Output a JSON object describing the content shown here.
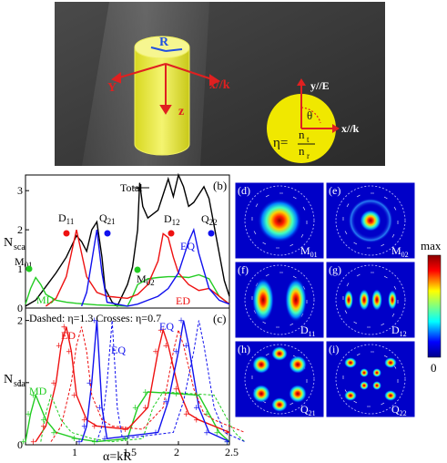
{
  "top_panel": {
    "axis_labels": {
      "R": "R",
      "y": "Y",
      "x": "x//k",
      "z": "z"
    },
    "inset": {
      "y_label": "y//E",
      "theta": "θ",
      "x_label": "x//k",
      "eta_lhs": "η=",
      "eta_num": "n",
      "eta_num_sub": "t",
      "eta_den": "n",
      "eta_den_sub": "r"
    }
  },
  "panel_b": {
    "label": "(b)",
    "ylabel": "N",
    "ylabel_sub": "sca",
    "total_label": "Total",
    "peak_labels": [
      "M01",
      "D11",
      "Q21",
      "M02",
      "D12",
      "Q22"
    ],
    "curve_labels": {
      "md": "MD",
      "ed": "ED",
      "eq": "EQ"
    },
    "y_ticks": [
      "0",
      "1",
      "2",
      "3"
    ],
    "colors": {
      "total": "#000000",
      "md": "#22cc22",
      "ed": "#ee1111",
      "eq": "#1111ee"
    }
  },
  "panel_c": {
    "label": "(c)",
    "legend_text": "Dashed: η=1.3   Crosses: η=0.7",
    "ylabel": "N",
    "ylabel_sub": "sca",
    "xlabel": "α=kR",
    "y_ticks": [
      "0",
      "1",
      "2"
    ],
    "x_ticks": [
      "1",
      "1.5",
      "2",
      "2.5"
    ],
    "curve_labels": {
      "md": "MD",
      "ed": "ED",
      "eq1": "EQ",
      "eq2": "EQ"
    }
  },
  "chart_data": [
    {
      "type": "line",
      "panel": "b",
      "xlabel": "α=kR",
      "ylabel": "Nsca",
      "xlim": [
        0.5,
        2.5
      ],
      "ylim": [
        0,
        3.4
      ],
      "series": [
        {
          "name": "Total",
          "x": [
            0.5,
            0.6,
            0.7,
            0.8,
            0.9,
            1.0,
            1.05,
            1.1,
            1.15,
            1.2,
            1.25,
            1.28,
            1.35,
            1.4,
            1.5,
            1.55,
            1.6,
            1.62,
            1.65,
            1.7,
            1.8,
            1.85,
            1.9,
            1.95,
            2.0,
            2.05,
            2.1,
            2.15,
            2.2,
            2.25,
            2.3,
            2.35,
            2.4,
            2.45,
            2.5
          ],
          "y": [
            0.05,
            0.2,
            0.55,
            0.9,
            1.3,
            1.85,
            1.7,
            1.45,
            2.0,
            2.2,
            1.3,
            0.5,
            0.15,
            0.05,
            0.6,
            1.05,
            2.0,
            3.2,
            2.6,
            2.3,
            2.5,
            2.9,
            3.3,
            2.85,
            3.4,
            3.1,
            2.6,
            2.7,
            2.9,
            3.1,
            2.8,
            2.1,
            1.4,
            0.7,
            0.3
          ]
        },
        {
          "name": "MD",
          "x": [
            0.5,
            0.55,
            0.6,
            0.65,
            0.7,
            0.8,
            0.9,
            1.0,
            1.1,
            1.2,
            1.5,
            1.55,
            1.6,
            1.7,
            1.8,
            1.9,
            2.0,
            2.1,
            2.2,
            2.3,
            2.4,
            2.5
          ],
          "y": [
            0.1,
            0.5,
            0.78,
            0.6,
            0.35,
            0.2,
            0.15,
            0.12,
            0.1,
            0.08,
            0.05,
            0.3,
            0.6,
            0.75,
            0.78,
            0.8,
            0.8,
            0.78,
            0.85,
            0.75,
            0.3,
            0.1
          ]
        },
        {
          "name": "ED",
          "x": [
            0.7,
            0.8,
            0.9,
            0.95,
            1.0,
            1.05,
            1.1,
            1.2,
            1.3,
            1.5,
            1.6,
            1.7,
            1.8,
            1.85,
            1.9,
            1.95,
            2.0,
            2.1,
            2.2,
            2.3,
            2.4,
            2.5
          ],
          "y": [
            0.05,
            0.25,
            0.8,
            1.4,
            2.0,
            1.4,
            0.8,
            0.4,
            0.3,
            0.25,
            0.35,
            0.6,
            1.2,
            1.9,
            1.8,
            1.3,
            0.9,
            0.6,
            0.45,
            0.5,
            0.3,
            0.1
          ]
        },
        {
          "name": "EQ",
          "x": [
            1.05,
            1.1,
            1.15,
            1.2,
            1.25,
            1.3,
            1.5,
            1.6,
            1.7,
            1.8,
            1.9,
            2.0,
            2.05,
            2.1,
            2.15,
            2.2,
            2.3,
            2.4,
            2.5
          ],
          "y": [
            0.05,
            0.4,
            1.2,
            2.0,
            0.9,
            0.15,
            0.05,
            0.1,
            0.2,
            0.3,
            0.5,
            0.9,
            1.3,
            1.7,
            2.0,
            1.4,
            0.5,
            0.2,
            0.1
          ]
        }
      ]
    },
    {
      "type": "line",
      "panel": "c",
      "xlabel": "α=kR",
      "ylabel": "Nsca",
      "xlim": [
        0.5,
        2.5
      ],
      "ylim": [
        0,
        2.2
      ],
      "x_ticks": [
        1,
        1.5,
        2,
        2.5
      ],
      "series": [
        {
          "name": "MD",
          "x": [
            0.5,
            0.55,
            0.6,
            0.7,
            0.8,
            1.0,
            1.2,
            1.5,
            1.6,
            1.7,
            2.0,
            2.2,
            2.3,
            2.4,
            2.5
          ],
          "y": [
            0.05,
            0.5,
            0.8,
            0.4,
            0.2,
            0.1,
            0.05,
            0.1,
            0.6,
            0.85,
            0.82,
            0.8,
            0.5,
            0.2,
            0.05
          ]
        },
        {
          "name": "ED",
          "x": [
            0.6,
            0.7,
            0.8,
            0.85,
            0.9,
            0.95,
            1.0,
            1.1,
            1.2,
            1.5,
            1.7,
            1.8,
            1.85,
            1.9,
            2.0,
            2.1,
            2.2,
            2.5
          ],
          "y": [
            0.05,
            0.3,
            1.0,
            1.6,
            1.9,
            1.5,
            0.8,
            0.4,
            0.3,
            0.25,
            0.6,
            1.5,
            1.85,
            1.6,
            0.9,
            0.5,
            0.4,
            0.2
          ]
        },
        {
          "name": "EQ",
          "x": [
            1.05,
            1.1,
            1.15,
            1.2,
            1.25,
            1.3,
            1.8,
            1.9,
            2.0,
            2.05,
            2.1,
            2.2,
            2.3,
            2.5
          ],
          "y": [
            0.05,
            0.3,
            1.0,
            2.0,
            0.6,
            0.1,
            0.2,
            0.7,
            1.5,
            2.0,
            1.6,
            0.6,
            0.2,
            0.05
          ]
        }
      ]
    }
  ],
  "mode_maps": {
    "colorbar": {
      "max_label": "max",
      "min_label": "0"
    },
    "maps": [
      {
        "label": "(d)",
        "mode": "M",
        "sub": "01"
      },
      {
        "label": "(e)",
        "mode": "M",
        "sub": "02"
      },
      {
        "label": "(f)",
        "mode": "D",
        "sub": "11"
      },
      {
        "label": "(g)",
        "mode": "D",
        "sub": "12"
      },
      {
        "label": "(h)",
        "mode": "Q",
        "sub": "21"
      },
      {
        "label": "(i)",
        "mode": "Q",
        "sub": "22"
      }
    ]
  }
}
